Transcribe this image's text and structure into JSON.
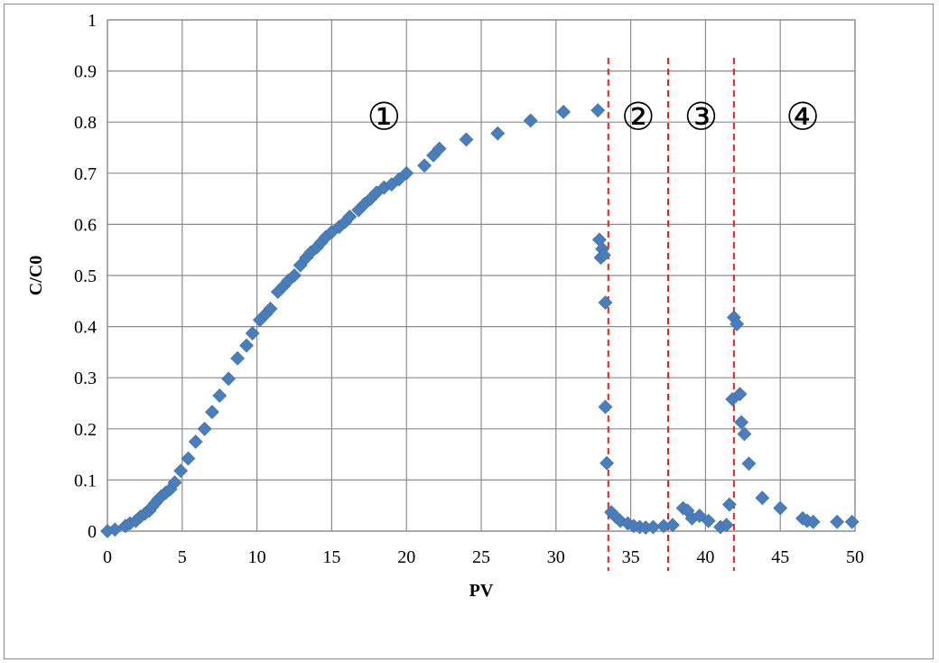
{
  "chart_data": {
    "type": "scatter",
    "xlabel": "PV",
    "ylabel": "C/C0",
    "xlim": [
      0,
      50
    ],
    "ylim": [
      0,
      1
    ],
    "x_ticks": [
      0,
      5,
      10,
      15,
      20,
      25,
      30,
      35,
      40,
      45,
      50
    ],
    "y_ticks": [
      0,
      0.1,
      0.2,
      0.3,
      0.4,
      0.5,
      0.6,
      0.7,
      0.8,
      0.9,
      1
    ],
    "y_tick_labels": [
      "0",
      "0.1",
      "0.2",
      "0.3",
      "0.4",
      "0.5",
      "0.6",
      "0.7",
      "0.8",
      "0.9",
      "1"
    ],
    "grid": true,
    "marker": "diamond",
    "color": "#4a7ebb",
    "divider_color": "#e8231b",
    "dividers_x": [
      33.5,
      37.5,
      41.9
    ],
    "annotations": [
      {
        "text": "①",
        "x": 18.5,
        "y": 0.81
      },
      {
        "text": "②",
        "x": 35.5,
        "y": 0.81
      },
      {
        "text": "③",
        "x": 39.7,
        "y": 0.81
      },
      {
        "text": "④",
        "x": 46.5,
        "y": 0.81
      }
    ],
    "series": [
      {
        "points": [
          [
            0,
            0
          ],
          [
            0.5,
            0.003
          ],
          [
            1.2,
            0.01
          ],
          [
            1.5,
            0.015
          ],
          [
            1.9,
            0.02
          ],
          [
            2.2,
            0.028
          ],
          [
            2.5,
            0.034
          ],
          [
            2.8,
            0.04
          ],
          [
            3.0,
            0.048
          ],
          [
            3.2,
            0.055
          ],
          [
            3.4,
            0.062
          ],
          [
            3.6,
            0.068
          ],
          [
            3.9,
            0.075
          ],
          [
            4.2,
            0.082
          ],
          [
            4.5,
            0.095
          ],
          [
            4.9,
            0.118
          ],
          [
            5.4,
            0.142
          ],
          [
            5.9,
            0.175
          ],
          [
            6.5,
            0.2
          ],
          [
            7.0,
            0.233
          ],
          [
            7.5,
            0.265
          ],
          [
            8.1,
            0.298
          ],
          [
            8.7,
            0.338
          ],
          [
            9.3,
            0.363
          ],
          [
            9.7,
            0.387
          ],
          [
            10.2,
            0.413
          ],
          [
            10.6,
            0.425
          ],
          [
            10.9,
            0.435
          ],
          [
            11.4,
            0.468
          ],
          [
            11.8,
            0.48
          ],
          [
            12.1,
            0.49
          ],
          [
            12.5,
            0.5
          ],
          [
            12.9,
            0.52
          ],
          [
            13.3,
            0.535
          ],
          [
            13.6,
            0.545
          ],
          [
            14.0,
            0.555
          ],
          [
            14.3,
            0.565
          ],
          [
            14.6,
            0.575
          ],
          [
            15.0,
            0.585
          ],
          [
            15.5,
            0.595
          ],
          [
            15.9,
            0.605
          ],
          [
            16.2,
            0.615
          ],
          [
            16.8,
            0.628
          ],
          [
            17.2,
            0.64
          ],
          [
            17.6,
            0.65
          ],
          [
            18.0,
            0.662
          ],
          [
            18.5,
            0.672
          ],
          [
            19.0,
            0.678
          ],
          [
            19.5,
            0.688
          ],
          [
            20.0,
            0.7
          ],
          [
            21.2,
            0.715
          ],
          [
            21.8,
            0.735
          ],
          [
            22.2,
            0.748
          ],
          [
            24.0,
            0.766
          ],
          [
            26.1,
            0.778
          ],
          [
            28.3,
            0.803
          ],
          [
            30.5,
            0.82
          ],
          [
            32.8,
            0.823
          ],
          [
            32.9,
            0.57
          ],
          [
            33.1,
            0.552
          ],
          [
            33.0,
            0.535
          ],
          [
            33.2,
            0.54
          ],
          [
            33.3,
            0.447
          ],
          [
            33.3,
            0.243
          ],
          [
            33.4,
            0.133
          ],
          [
            33.7,
            0.037
          ],
          [
            34.0,
            0.028
          ],
          [
            34.3,
            0.02
          ],
          [
            34.8,
            0.015
          ],
          [
            35.2,
            0.01
          ],
          [
            35.6,
            0.008
          ],
          [
            36.0,
            0.007
          ],
          [
            36.5,
            0.008
          ],
          [
            37.2,
            0.01
          ],
          [
            37.8,
            0.012
          ],
          [
            38.5,
            0.045
          ],
          [
            38.8,
            0.04
          ],
          [
            39.1,
            0.025
          ],
          [
            39.6,
            0.03
          ],
          [
            40.2,
            0.02
          ],
          [
            41.0,
            0.008
          ],
          [
            41.4,
            0.012
          ],
          [
            41.6,
            0.052
          ],
          [
            41.8,
            0.258
          ],
          [
            41.9,
            0.418
          ],
          [
            42.1,
            0.405
          ],
          [
            42.3,
            0.268
          ],
          [
            42.4,
            0.213
          ],
          [
            42.6,
            0.19
          ],
          [
            42.9,
            0.132
          ],
          [
            43.8,
            0.065
          ],
          [
            45.0,
            0.045
          ],
          [
            46.5,
            0.025
          ],
          [
            46.8,
            0.02
          ],
          [
            47.2,
            0.018
          ],
          [
            48.8,
            0.018
          ],
          [
            49.8,
            0.018
          ]
        ]
      }
    ]
  }
}
